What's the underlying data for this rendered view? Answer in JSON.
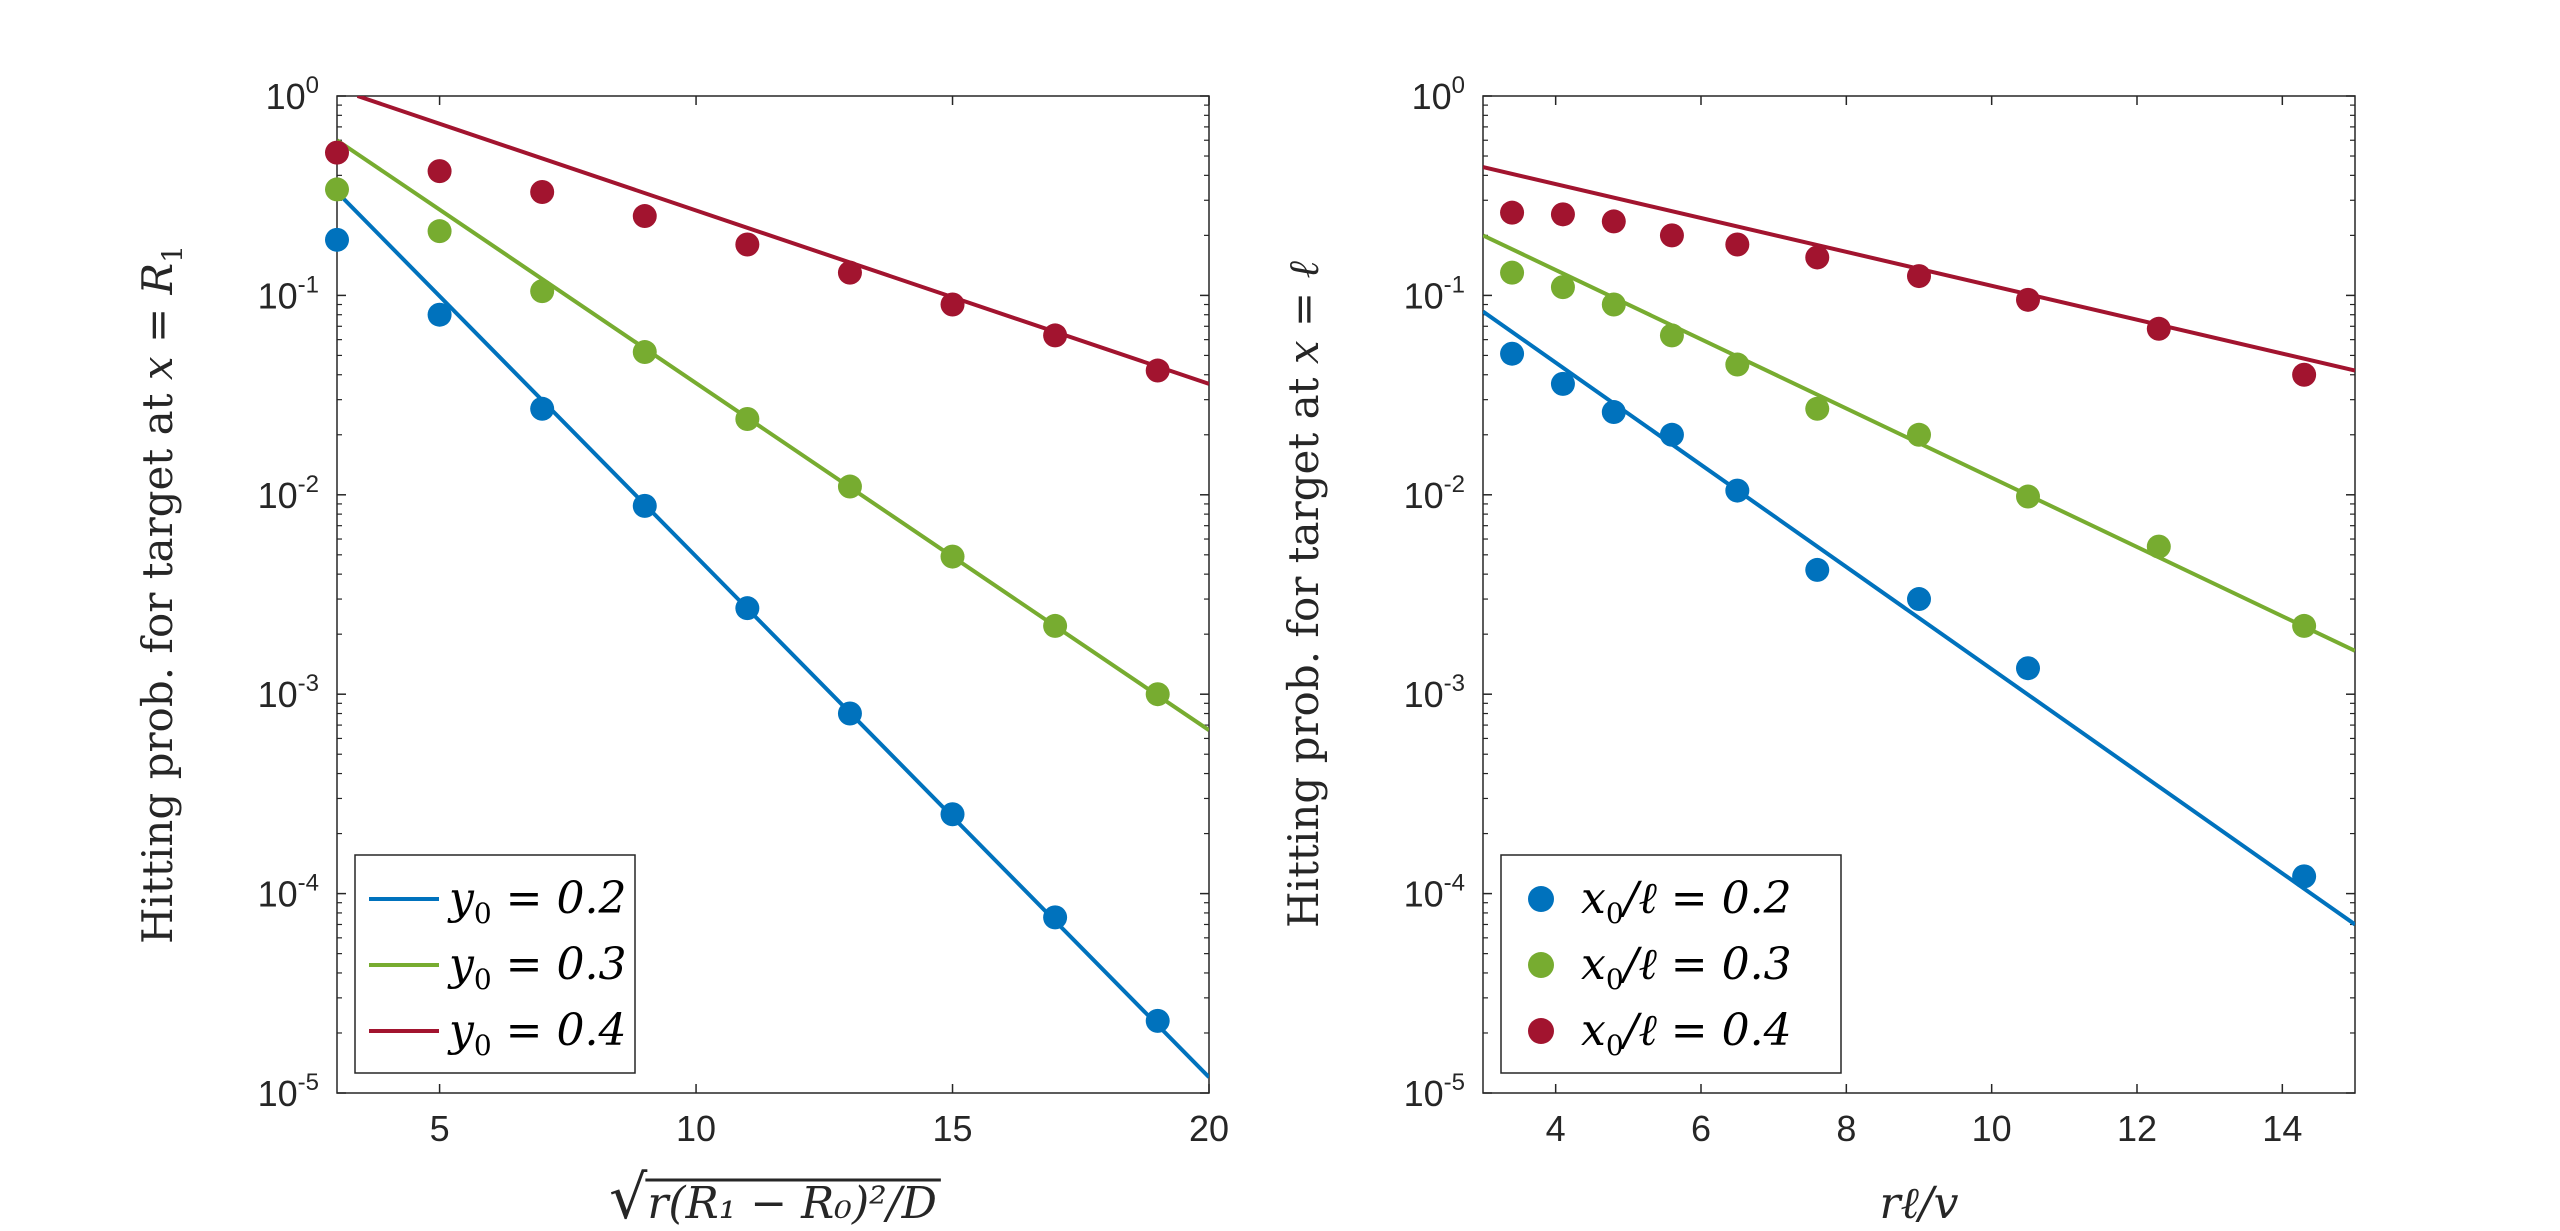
{
  "chart_data": [
    {
      "type": "line+scatter",
      "yscale": "log",
      "xlim": [
        3,
        20
      ],
      "ylim": [
        1e-05,
        1
      ],
      "xticks": [
        5,
        10,
        15,
        20
      ],
      "xtick_labels": [
        "5",
        "10",
        "15",
        "20"
      ],
      "ytick_labels": [
        {
          "base": "10",
          "exp": "0"
        },
        {
          "base": "10",
          "exp": "-1"
        },
        {
          "base": "10",
          "exp": "-2"
        },
        {
          "base": "10",
          "exp": "-3"
        },
        {
          "base": "10",
          "exp": "-4"
        },
        {
          "base": "10",
          "exp": "-5"
        }
      ],
      "ylabel_prefix": "Hitting prob. for target at ",
      "ylabel_math": "x = R",
      "ylabel_sub": "1",
      "xlabel_math": "r(R₁ − R₀)²/D",
      "xlabel_radical": "√",
      "legend": {
        "style": "line",
        "position": "bottom-left"
      },
      "series": [
        {
          "name": "y0 = 0.2",
          "label_var": "y",
          "label_sub": "0",
          "label_rest": " = 0.2",
          "color": "#0072BD",
          "line": {
            "x": [
              3,
              20
            ],
            "y": [
              0.33,
              1.2e-05
            ]
          },
          "points": {
            "x": [
              3,
              5,
              7,
              9,
              11,
              13,
              15,
              17,
              19
            ],
            "y": [
              0.19,
              0.08,
              0.027,
              0.0088,
              0.0027,
              0.0008,
              0.00025,
              7.6e-05,
              2.3e-05
            ]
          }
        },
        {
          "name": "y0 = 0.3",
          "label_var": "y",
          "label_sub": "0",
          "label_rest": " = 0.3",
          "color": "#77AC30",
          "line": {
            "x": [
              3,
              20
            ],
            "y": [
              0.6,
              0.00066
            ]
          },
          "points": {
            "x": [
              3,
              5,
              7,
              9,
              11,
              13,
              15,
              17,
              19
            ],
            "y": [
              0.34,
              0.21,
              0.105,
              0.052,
              0.024,
              0.011,
              0.0049,
              0.0022,
              0.001
            ]
          }
        },
        {
          "name": "y0 = 0.4",
          "label_var": "y",
          "label_sub": "0",
          "label_rest": " = 0.4",
          "color": "#A2142F",
          "line": {
            "x": [
              3.4,
              20
            ],
            "y": [
              1.0,
              0.036
            ]
          },
          "points": {
            "x": [
              3,
              5,
              7,
              9,
              11,
              13,
              15,
              17,
              19
            ],
            "y": [
              0.52,
              0.42,
              0.33,
              0.25,
              0.18,
              0.13,
              0.09,
              0.063,
              0.042
            ]
          }
        }
      ]
    },
    {
      "type": "line+scatter",
      "yscale": "log",
      "xlim": [
        3,
        15
      ],
      "ylim": [
        1e-05,
        1
      ],
      "xticks": [
        4,
        6,
        8,
        10,
        12,
        14
      ],
      "xtick_labels": [
        "4",
        "6",
        "8",
        "10",
        "12",
        "14"
      ],
      "ytick_labels": [
        {
          "base": "10",
          "exp": "0"
        },
        {
          "base": "10",
          "exp": "-1"
        },
        {
          "base": "10",
          "exp": "-2"
        },
        {
          "base": "10",
          "exp": "-3"
        },
        {
          "base": "10",
          "exp": "-4"
        },
        {
          "base": "10",
          "exp": "-5"
        }
      ],
      "ylabel_prefix": "Hitting prob. for target at ",
      "ylabel_math": "x = ℓ",
      "ylabel_sub": "",
      "xlabel_math": "rℓ/v",
      "xlabel_radical": "",
      "legend": {
        "style": "marker",
        "position": "bottom-left"
      },
      "series": [
        {
          "name": "x0/ℓ = 0.2",
          "label_var": "x",
          "label_sub": "0",
          "label_rest": "/ℓ = 0.2",
          "color": "#0072BD",
          "line": {
            "x": [
              3,
              15
            ],
            "y": [
              0.083,
              7e-05
            ]
          },
          "points": {
            "x": [
              3.4,
              4.1,
              4.8,
              5.6,
              6.5,
              7.6,
              9.0,
              10.5,
              14.3
            ],
            "y": [
              0.051,
              0.036,
              0.026,
              0.02,
              0.0105,
              0.0042,
              0.003,
              0.00135,
              0.000122
            ]
          }
        },
        {
          "name": "x0/ℓ = 0.3",
          "label_var": "x",
          "label_sub": "0",
          "label_rest": "/ℓ = 0.3",
          "color": "#77AC30",
          "line": {
            "x": [
              3,
              15
            ],
            "y": [
              0.2,
              0.00165
            ]
          },
          "points": {
            "x": [
              3.4,
              4.1,
              4.8,
              5.6,
              6.5,
              7.6,
              9.0,
              10.5,
              12.3,
              14.3
            ],
            "y": [
              0.13,
              0.11,
              0.09,
              0.063,
              0.045,
              0.027,
              0.02,
              0.0098,
              0.0055,
              0.0022
            ]
          }
        },
        {
          "name": "x0/ℓ = 0.4",
          "label_var": "x",
          "label_sub": "0",
          "label_rest": "/ℓ = 0.4",
          "color": "#A2142F",
          "line": {
            "x": [
              3,
              15
            ],
            "y": [
              0.44,
              0.042
            ]
          },
          "points": {
            "x": [
              3.4,
              4.1,
              4.8,
              5.6,
              6.5,
              7.6,
              9.0,
              10.5,
              12.3,
              14.3
            ],
            "y": [
              0.26,
              0.255,
              0.235,
              0.2,
              0.18,
              0.155,
              0.125,
              0.095,
              0.068,
              0.04
            ]
          }
        }
      ]
    }
  ]
}
